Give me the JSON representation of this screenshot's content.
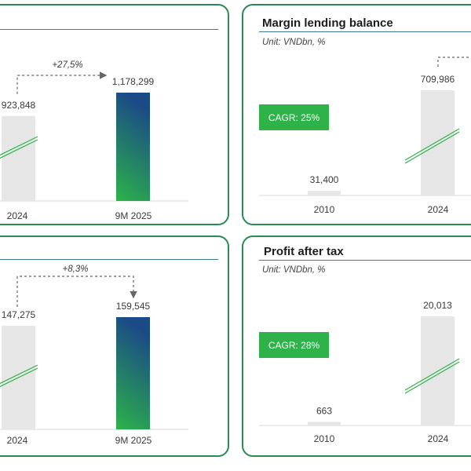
{
  "colors": {
    "border": "#2a8a54",
    "bar_gray": "#e6e6e6",
    "gradient_top": "#1b4b87",
    "gradient_bottom": "#2db34a",
    "cagr_box": "#2db34a",
    "arrow": "#666666"
  },
  "panels": [
    {
      "id": "top-left",
      "title": "",
      "unit": "",
      "cagr": "",
      "growth_label": "+27,5%"
    },
    {
      "id": "top-right",
      "title": "Margin lending balance",
      "unit": "Unit: VNDbn, %",
      "cagr": "CAGR: 25%"
    },
    {
      "id": "bottom-left",
      "title": "",
      "unit": "",
      "cagr": "",
      "growth_label": "+8,3%"
    },
    {
      "id": "bottom-right",
      "title": "Profit after tax",
      "unit": "Unit: VNDbn, %",
      "cagr": "CAGR: 28%"
    }
  ],
  "chart_data": [
    {
      "type": "bar",
      "title": "",
      "categories": [
        "2024",
        "9M 2025"
      ],
      "values": [
        923848,
        1178299
      ],
      "labels": [
        "923,848",
        "1,178,299"
      ],
      "annotation": "+27,5%"
    },
    {
      "type": "bar",
      "title": "Margin lending balance",
      "unit": "Unit: VNDbn, %",
      "categories": [
        "2010",
        "2024"
      ],
      "values": [
        31400,
        709986
      ],
      "labels": [
        "31,400",
        "709,986"
      ],
      "annotation": "CAGR: 25%"
    },
    {
      "type": "bar",
      "title": "",
      "categories": [
        "2024",
        "9M 2025"
      ],
      "values": [
        147275,
        159545
      ],
      "labels": [
        "147,275",
        "159,545"
      ],
      "annotation": "+8,3%"
    },
    {
      "type": "bar",
      "title": "Profit after tax",
      "unit": "Unit: VNDbn, %",
      "categories": [
        "2010",
        "2024"
      ],
      "values": [
        663,
        20013
      ],
      "labels": [
        "663",
        "20,013"
      ],
      "annotation": "CAGR: 28%"
    }
  ]
}
